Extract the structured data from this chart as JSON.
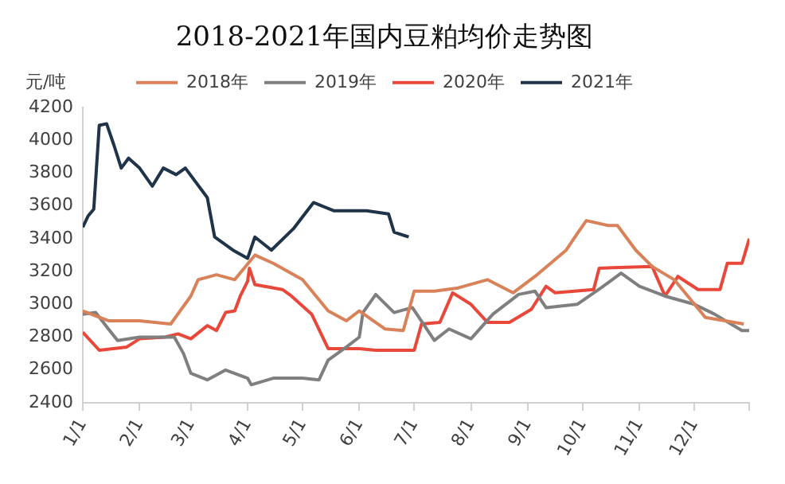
{
  "chart_data": {
    "type": "line",
    "title": "2018-2021年国内豆粕均价走势图",
    "ylabel": "元/吨",
    "legend": "top",
    "grid": false,
    "marker": "none",
    "line_style": "solid",
    "xlim": [
      "--01-01",
      "--12-31"
    ],
    "xticks": [
      {
        "value": "--01-01",
        "label": "1/1"
      },
      {
        "value": "--02-01",
        "label": "2/1"
      },
      {
        "value": "--03-01",
        "label": "3/1"
      },
      {
        "value": "--04-01",
        "label": "4/1"
      },
      {
        "value": "--05-01",
        "label": "5/1"
      },
      {
        "value": "--06-01",
        "label": "6/1"
      },
      {
        "value": "--07-01",
        "label": "7/1"
      },
      {
        "value": "--08-01",
        "label": "8/1"
      },
      {
        "value": "--09-01",
        "label": "9/1"
      },
      {
        "value": "--10-01",
        "label": "10/1"
      },
      {
        "value": "--11-01",
        "label": "11/1"
      },
      {
        "value": "--12-01",
        "label": "12/1"
      },
      {
        "value": "--12-31",
        "label": null
      }
    ],
    "ylim": [
      2400,
      4200
    ],
    "yticks": [
      2400,
      2600,
      2800,
      3000,
      3200,
      3400,
      3600,
      3800,
      4000,
      4200
    ],
    "series": [
      {
        "name": "2018年",
        "color": "#d9825a",
        "x": [
          "--01-01",
          "--01-15",
          "--02-01",
          "--02-18",
          "--03-01",
          "--03-05",
          "--03-15",
          "--03-25",
          "--04-05",
          "--04-15",
          "--05-01",
          "--05-15",
          "--05-25",
          "--06-01",
          "--06-15",
          "--06-25",
          "--07-01",
          "--07-12",
          "--07-25",
          "--08-10",
          "--08-24",
          "--09-05",
          "--09-22",
          "--09-28",
          "--10-03",
          "--10-15",
          "--10-20",
          "--10-30",
          "--11-08",
          "--11-20",
          "--12-07",
          "--12-28"
        ],
        "values": [
          2960,
          2900,
          2900,
          2880,
          3050,
          3150,
          3180,
          3150,
          3300,
          3250,
          3150,
          2960,
          2900,
          2960,
          2850,
          2840,
          3080,
          3080,
          3100,
          3150,
          3070,
          3170,
          3330,
          3430,
          3510,
          3480,
          3480,
          3330,
          3230,
          3150,
          2920,
          2880
        ]
      },
      {
        "name": "2019年",
        "color": "#7f7f7f",
        "x": [
          "--01-01",
          "--01-08",
          "--01-15",
          "--01-20",
          "--02-01",
          "--02-10",
          "--02-20",
          "--02-25",
          "--03-01",
          "--03-10",
          "--03-20",
          "--04-01",
          "--04-03",
          "--04-15",
          "--05-01",
          "--05-10",
          "--05-15",
          "--05-25",
          "--06-01",
          "--06-03",
          "--06-10",
          "--06-20",
          "--06-30",
          "--07-12",
          "--07-20",
          "--08-01",
          "--08-13",
          "--08-27",
          "--09-05",
          "--09-11",
          "--09-28",
          "--10-11",
          "--10-22",
          "--11-01",
          "--11-15",
          "--12-01",
          "--12-12",
          "--12-27",
          "--12-31"
        ],
        "values": [
          2940,
          2950,
          2850,
          2780,
          2800,
          2800,
          2800,
          2700,
          2580,
          2540,
          2600,
          2550,
          2510,
          2550,
          2550,
          2540,
          2660,
          2740,
          2800,
          2950,
          3060,
          2950,
          2980,
          2780,
          2850,
          2790,
          2940,
          3060,
          3080,
          2980,
          3000,
          3100,
          3190,
          3110,
          3050,
          3000,
          2940,
          2840,
          2840
        ]
      },
      {
        "name": "2020年",
        "color": "#e8473a",
        "x": [
          "--01-01",
          "--01-10",
          "--01-25",
          "--02-01",
          "--02-15",
          "--02-22",
          "--03-01",
          "--03-10",
          "--03-15",
          "--03-20",
          "--03-25",
          "--03-28",
          "--04-01",
          "--04-02",
          "--04-05",
          "--04-20",
          "--04-25",
          "--05-06",
          "--05-15",
          "--06-01",
          "--06-10",
          "--07-01",
          "--07-05",
          "--07-15",
          "--07-22",
          "--08-01",
          "--08-10",
          "--08-22",
          "--09-03",
          "--09-11",
          "--09-16",
          "--10-07",
          "--10-10",
          "--11-08",
          "--11-15",
          "--11-22",
          "--12-03",
          "--12-15",
          "--12-19",
          "--12-27",
          "--12-31"
        ],
        "values": [
          2830,
          2720,
          2740,
          2790,
          2800,
          2820,
          2790,
          2870,
          2840,
          2950,
          2960,
          3050,
          3140,
          3220,
          3120,
          3090,
          3050,
          2940,
          2730,
          2730,
          2720,
          2720,
          2880,
          2890,
          3070,
          3000,
          2890,
          2890,
          2970,
          3110,
          3070,
          3090,
          3220,
          3230,
          3050,
          3170,
          3090,
          3090,
          3250,
          3250,
          3400
        ]
      },
      {
        "name": "2021年",
        "color": "#1f3349",
        "x": [
          "--01-01",
          "--01-04",
          "--01-07",
          "--01-10",
          "--01-14",
          "--01-18",
          "--01-22",
          "--01-26",
          "--02-01",
          "--02-08",
          "--02-14",
          "--02-21",
          "--02-26",
          "--03-10",
          "--03-14",
          "--03-24",
          "--04-01",
          "--04-05",
          "--04-14",
          "--04-26",
          "--05-07",
          "--05-18",
          "--06-05",
          "--06-17",
          "--06-20",
          "--06-28"
        ],
        "values": [
          3470,
          3540,
          3580,
          4090,
          4100,
          3970,
          3830,
          3890,
          3830,
          3720,
          3830,
          3790,
          3830,
          3650,
          3410,
          3330,
          3280,
          3410,
          3330,
          3460,
          3620,
          3570,
          3570,
          3550,
          3440,
          3410
        ]
      }
    ]
  }
}
